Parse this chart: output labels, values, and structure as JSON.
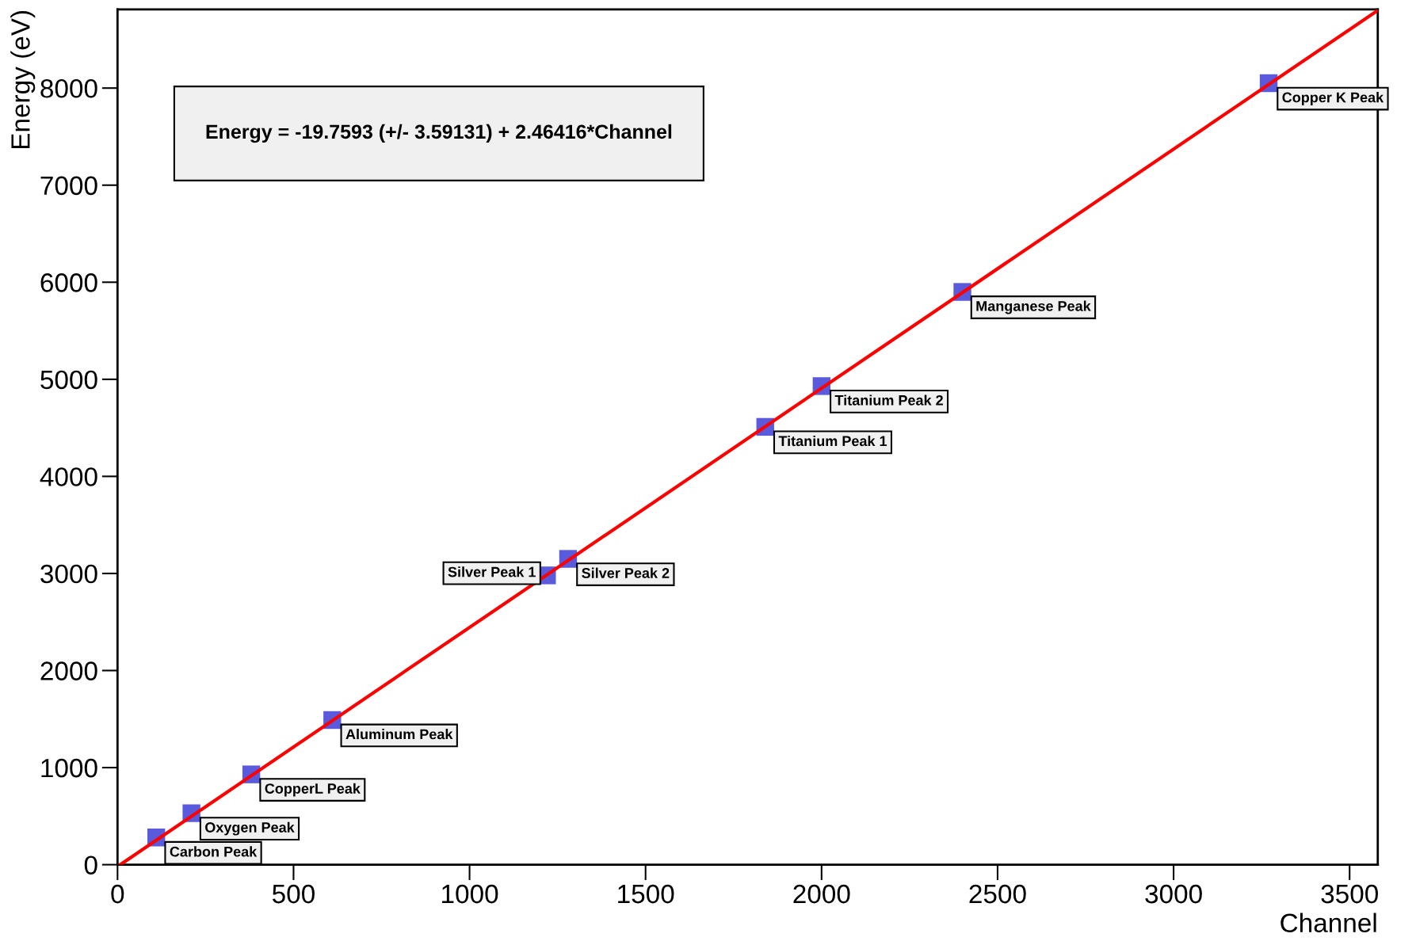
{
  "chart_data": {
    "type": "scatter",
    "xlabel": "Channel",
    "ylabel": "Energy (eV)",
    "xlim": [
      0,
      3580
    ],
    "ylim": [
      0,
      8810
    ],
    "xticks": [
      0,
      500,
      1000,
      1500,
      2000,
      2500,
      3000,
      3500
    ],
    "yticks": [
      0,
      1000,
      2000,
      3000,
      4000,
      5000,
      6000,
      7000,
      8000
    ],
    "grid": false,
    "legend": false,
    "series": [
      {
        "color": "#5a5adc",
        "marker": "square",
        "x": [
          110,
          210,
          380,
          610,
          1220,
          1280,
          1840,
          2000,
          2400,
          3270
        ],
        "values": [
          280,
          530,
          930,
          1490,
          2980,
          3150,
          4510,
          4930,
          5900,
          8050
        ]
      },
      {
        "type": "line",
        "color": "#ff0000",
        "x": [
          8,
          3580
        ],
        "values": [
          0,
          8800
        ],
        "line_style": "solid",
        "marker": "none"
      }
    ],
    "annotations": [
      {
        "text": "Carbon Peak",
        "x": 110,
        "y": 280
      },
      {
        "text": "Oxygen Peak",
        "x": 210,
        "y": 530
      },
      {
        "text": "CopperL Peak",
        "x": 380,
        "y": 930
      },
      {
        "text": "Aluminum Peak",
        "x": 610,
        "y": 1490
      },
      {
        "text": "Silver Peak 1",
        "x": 1220,
        "y": 2980
      },
      {
        "text": "Silver Peak 2",
        "x": 1280,
        "y": 3150
      },
      {
        "text": "Titanium Peak 1",
        "x": 1840,
        "y": 4510
      },
      {
        "text": "Titanium Peak 2",
        "x": 2000,
        "y": 4930
      },
      {
        "text": "Manganese Peak",
        "x": 2400,
        "y": 5900
      },
      {
        "text": "Copper K Peak",
        "x": 3270,
        "y": 8050
      },
      "Energy = -19.7593 (+/- 3.59131) + 2.46416*Channel"
    ]
  }
}
